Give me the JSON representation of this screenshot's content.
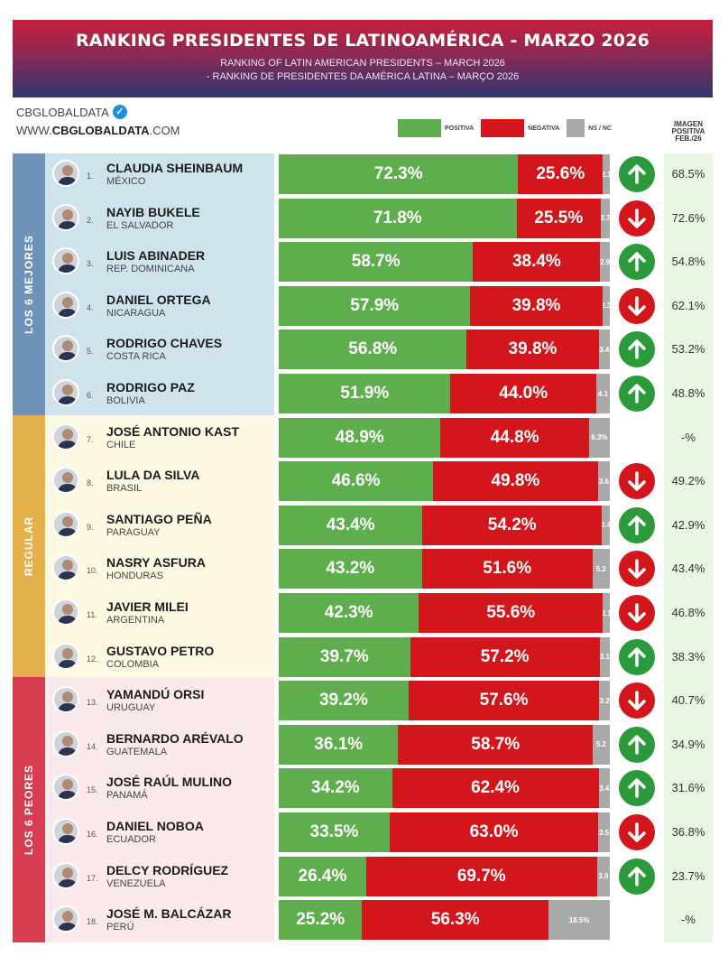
{
  "header": {
    "title": "RANKING PRESIDENTES DE LATINOAMÉRICA - MARZO 2026",
    "subtitle_en": "RANKING OF LATIN AMERICAN PRESIDENTS – MARCH 2026",
    "subtitle_pt": "- RANKING DE PRESIDENTES DA AMÉRICA LATINA – MARÇO 2026"
  },
  "brand": {
    "name": "CBGLOBALDATA",
    "url_prefix": "WWW.",
    "url_bold": "CBGLOBALDATA",
    "url_suffix": ".COM"
  },
  "legend": {
    "positive": "POSITIVA",
    "negative": "NEGATIVA",
    "ns": "NS / NC"
  },
  "image_column_header": [
    "IMAGEN",
    "POSITIVA",
    "FEB./26"
  ],
  "groups": [
    {
      "label": "LOS 6 MEJORES"
    },
    {
      "label": "REGULAR"
    },
    {
      "label": "LOS 6 PEORES"
    }
  ],
  "colors": {
    "positive": "#5fae4e",
    "negative": "#d2161c",
    "ns": "#a9a9a9",
    "trend_up": "#2a9a3a",
    "trend_down": "#d2161c"
  },
  "chart_data": {
    "type": "bar",
    "stacked": true,
    "orientation": "horizontal",
    "title": "RANKING PRESIDENTES DE LATINOAMÉRICA - MARZO 2026",
    "series_names": [
      "POSITIVA",
      "NEGATIVA",
      "NS / NC"
    ],
    "rows": [
      {
        "rank": "1.",
        "name": "CLAUDIA SHEINBAUM",
        "country": "MÉXICO",
        "pos": 72.3,
        "neg": 25.6,
        "ns": 2.1,
        "pos_label": "72.3%",
        "neg_label": "25.6%",
        "ns_label": "2.1",
        "trend": "up",
        "prev": "68.5%"
      },
      {
        "rank": "2.",
        "name": "NAYIB BUKELE",
        "country": "EL SALVADOR",
        "pos": 71.8,
        "neg": 25.5,
        "ns": 2.7,
        "pos_label": "71.8%",
        "neg_label": "25.5%",
        "ns_label": "2.7",
        "trend": "down",
        "prev": "72.6%"
      },
      {
        "rank": "3.",
        "name": "LUIS ABINADER",
        "country": "REP. DOMINICANA",
        "pos": 58.7,
        "neg": 38.4,
        "ns": 2.9,
        "pos_label": "58.7%",
        "neg_label": "38.4%",
        "ns_label": "2.9",
        "trend": "up",
        "prev": "54.8%"
      },
      {
        "rank": "4.",
        "name": "DANIEL ORTEGA",
        "country": "NICARAGUA",
        "pos": 57.9,
        "neg": 39.8,
        "ns": 2.3,
        "pos_label": "57.9%",
        "neg_label": "39.8%",
        "ns_label": "2.3",
        "trend": "down",
        "prev": "62.1%"
      },
      {
        "rank": "5.",
        "name": "RODRIGO CHAVES",
        "country": "COSTA RICA",
        "pos": 56.8,
        "neg": 39.8,
        "ns": 3.4,
        "pos_label": "56.8%",
        "neg_label": "39.8%",
        "ns_label": "3.4",
        "trend": "up",
        "prev": "53.2%"
      },
      {
        "rank": "6.",
        "name": "RODRIGO PAZ",
        "country": "BOLIVIA",
        "pos": 51.9,
        "neg": 44.0,
        "ns": 4.1,
        "pos_label": "51.9%",
        "neg_label": "44.0%",
        "ns_label": "4.1",
        "trend": "up",
        "prev": "48.8%"
      },
      {
        "rank": "7.",
        "name": "JOSÉ ANTONIO KAST",
        "country": "CHILE",
        "pos": 48.9,
        "neg": 44.8,
        "ns": 6.3,
        "pos_label": "48.9%",
        "neg_label": "44.8%",
        "ns_label": "6.3%",
        "trend": "none",
        "prev": "-%"
      },
      {
        "rank": "8.",
        "name": "LULA DA SILVA",
        "country": "BRASIL",
        "pos": 46.6,
        "neg": 49.8,
        "ns": 3.6,
        "pos_label": "46.6%",
        "neg_label": "49.8%",
        "ns_label": "3.6",
        "trend": "down",
        "prev": "49.2%"
      },
      {
        "rank": "9.",
        "name": "SANTIAGO PEÑA",
        "country": "PARAGUAY",
        "pos": 43.4,
        "neg": 54.2,
        "ns": 2.4,
        "pos_label": "43.4%",
        "neg_label": "54.2%",
        "ns_label": "2.4",
        "trend": "up",
        "prev": "42.9%"
      },
      {
        "rank": "10.",
        "name": "NASRY ASFURA",
        "country": "HONDURAS",
        "pos": 43.2,
        "neg": 51.6,
        "ns": 5.2,
        "pos_label": "43.2%",
        "neg_label": "51.6%",
        "ns_label": "5.2",
        "trend": "down",
        "prev": "43.4%"
      },
      {
        "rank": "11.",
        "name": "JAVIER MILEI",
        "country": "ARGENTINA",
        "pos": 42.3,
        "neg": 55.6,
        "ns": 2.1,
        "pos_label": "42.3%",
        "neg_label": "55.6%",
        "ns_label": "2.1",
        "trend": "down",
        "prev": "46.8%"
      },
      {
        "rank": "12.",
        "name": "GUSTAVO PETRO",
        "country": "COLOMBIA",
        "pos": 39.7,
        "neg": 57.2,
        "ns": 3.1,
        "pos_label": "39.7%",
        "neg_label": "57.2%",
        "ns_label": "3.1",
        "trend": "up",
        "prev": "38.3%"
      },
      {
        "rank": "13.",
        "name": "YAMANDÚ ORSI",
        "country": "URUGUAY",
        "pos": 39.2,
        "neg": 57.6,
        "ns": 3.2,
        "pos_label": "39.2%",
        "neg_label": "57.6%",
        "ns_label": "3.2",
        "trend": "down",
        "prev": "40.7%"
      },
      {
        "rank": "14.",
        "name": "BERNARDO ARÉVALO",
        "country": "GUATEMALA",
        "pos": 36.1,
        "neg": 58.7,
        "ns": 5.2,
        "pos_label": "36.1%",
        "neg_label": "58.7%",
        "ns_label": "5.2",
        "trend": "up",
        "prev": "34.9%"
      },
      {
        "rank": "15.",
        "name": "JOSÉ RAÚL MULINO",
        "country": "PANAMÁ",
        "pos": 34.2,
        "neg": 62.4,
        "ns": 3.4,
        "pos_label": "34.2%",
        "neg_label": "62.4%",
        "ns_label": "3.4",
        "trend": "up",
        "prev": "31.6%"
      },
      {
        "rank": "16.",
        "name": "DANIEL NOBOA",
        "country": "ECUADOR",
        "pos": 33.5,
        "neg": 63.0,
        "ns": 3.5,
        "pos_label": "33.5%",
        "neg_label": "63.0%",
        "ns_label": "3.5",
        "trend": "down",
        "prev": "36.8%"
      },
      {
        "rank": "17.",
        "name": "DELCY RODRÍGUEZ",
        "country": "VENEZUELA",
        "pos": 26.4,
        "neg": 69.7,
        "ns": 3.9,
        "pos_label": "26.4%",
        "neg_label": "69.7%",
        "ns_label": "3.9",
        "trend": "up",
        "prev": "23.7%"
      },
      {
        "rank": "18.",
        "name": "JOSÉ M. BALCÁZAR",
        "country": "PERÚ",
        "pos": 25.2,
        "neg": 56.3,
        "ns": 18.5,
        "pos_label": "25.2%",
        "neg_label": "56.3%",
        "ns_label": "18.5%",
        "trend": "none",
        "prev": "-%"
      }
    ]
  }
}
